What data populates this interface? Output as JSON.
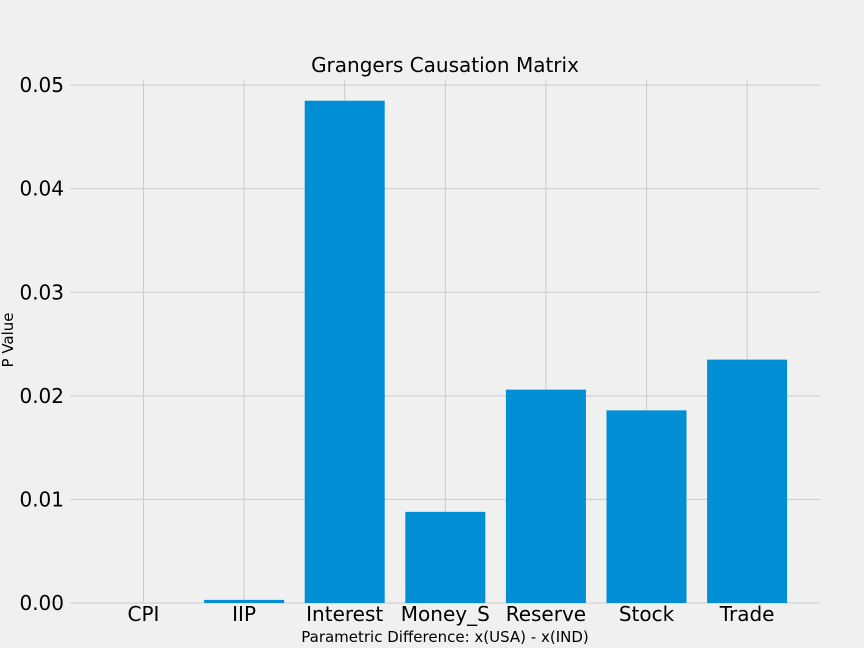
{
  "chart_data": {
    "type": "bar",
    "title": "Grangers Causation Matrix",
    "xlabel": "Parametric Difference: x(USA) - x(IND)",
    "ylabel": "P Value",
    "categories": [
      "CPI",
      "IIP",
      "Interest",
      "Money_S",
      "Reserve",
      "Stock",
      "Trade"
    ],
    "values": [
      0.0,
      0.0003,
      0.0485,
      0.0088,
      0.0206,
      0.0186,
      0.0235
    ],
    "ylim": [
      0,
      0.0505
    ],
    "yticks": [
      "0.00",
      "0.01",
      "0.02",
      "0.03",
      "0.04",
      "0.05"
    ],
    "grid": true,
    "bar_color": "#008fd5",
    "background_color": "#f0f0f0",
    "grid_color": "#cbcbcb"
  }
}
